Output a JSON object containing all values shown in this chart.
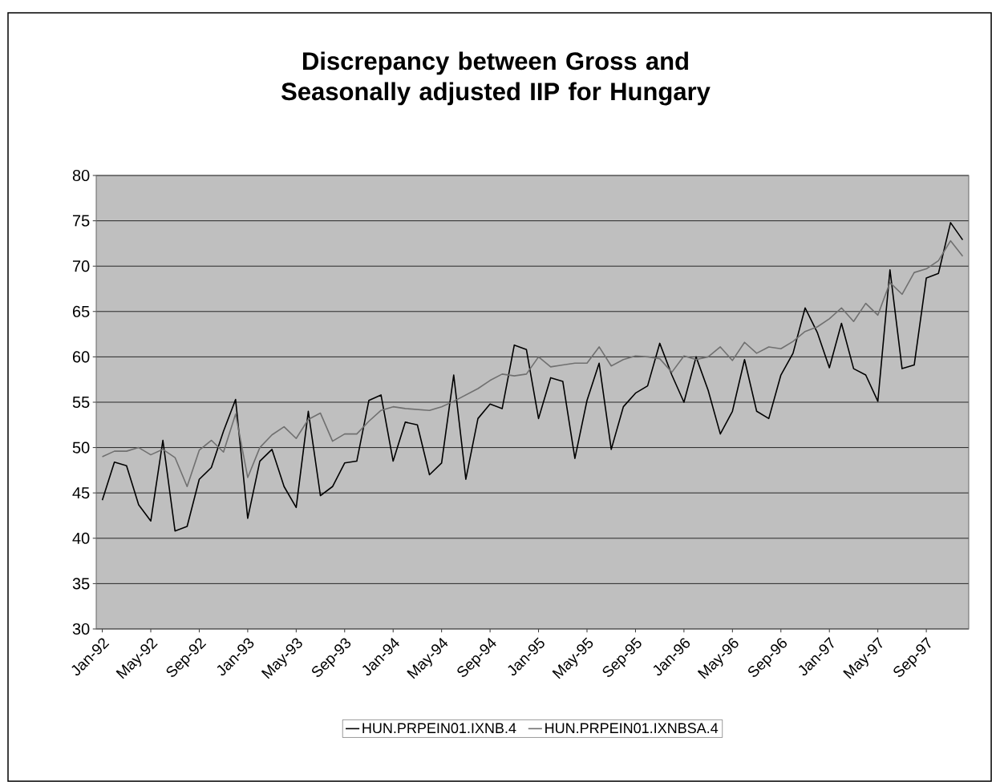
{
  "chart_data": {
    "type": "line",
    "title": "Discrepancy between Gross and Seasonally adjusted IIP for Hungary",
    "categories": [
      "Jan-92",
      null,
      null,
      null,
      "May-92",
      null,
      null,
      null,
      "Sep-92",
      null,
      null,
      null,
      "Jan-93",
      null,
      null,
      null,
      "May-93",
      null,
      null,
      null,
      "Sep-93",
      null,
      null,
      null,
      "Jan-94",
      null,
      null,
      null,
      "May-94",
      null,
      null,
      null,
      "Sep-94",
      null,
      null,
      null,
      "Jan-95",
      null,
      null,
      null,
      "May-95",
      null,
      null,
      null,
      "Sep-95",
      null,
      null,
      null,
      "Jan-96",
      null,
      null,
      null,
      "May-96",
      null,
      null,
      null,
      "Sep-96",
      null,
      null,
      null,
      "Jan-97",
      null,
      null,
      null,
      "May-97",
      null,
      null,
      null,
      "Sep-97",
      null,
      null,
      null
    ],
    "series": [
      {
        "name": "HUN.PRPEIN01.IXNB.4",
        "color": "#000000",
        "values": [
          44.2,
          48.4,
          48.0,
          43.7,
          41.9,
          50.8,
          40.8,
          41.3,
          46.5,
          47.8,
          51.8,
          55.3,
          42.2,
          48.5,
          49.8,
          45.7,
          43.4,
          54.0,
          44.7,
          45.7,
          48.3,
          48.5,
          55.2,
          55.8,
          48.5,
          52.8,
          52.5,
          47.0,
          48.3,
          58.0,
          46.5,
          53.2,
          54.8,
          54.3,
          61.3,
          60.8,
          53.2,
          57.7,
          57.3,
          48.8,
          55.2,
          59.3,
          49.8,
          54.5,
          56.0,
          56.8,
          61.5,
          58.0,
          55.0,
          60.0,
          56.3,
          51.5,
          54.0,
          59.7,
          54.0,
          53.2,
          58.0,
          60.4,
          65.4,
          62.7,
          58.8,
          63.7,
          58.7,
          58.0,
          55.1,
          69.6,
          58.7,
          59.1,
          68.7,
          69.2,
          74.8,
          72.9
        ]
      },
      {
        "name": "HUN.PRPEIN01.IXNBSA.4",
        "color": "#707070",
        "values": [
          49.0,
          49.6,
          49.6,
          50.0,
          49.2,
          49.8,
          48.9,
          45.7,
          49.7,
          50.8,
          49.5,
          53.7,
          46.7,
          50.0,
          51.4,
          52.3,
          51.0,
          53.1,
          53.8,
          50.7,
          51.5,
          51.5,
          52.9,
          54.1,
          54.5,
          54.3,
          54.2,
          54.1,
          54.5,
          55.1,
          55.8,
          56.5,
          57.4,
          58.1,
          57.9,
          58.1,
          60.0,
          58.9,
          59.1,
          59.3,
          59.3,
          61.1,
          59.0,
          59.7,
          60.1,
          60.0,
          59.8,
          58.3,
          60.1,
          59.7,
          60.0,
          61.1,
          59.6,
          61.6,
          60.4,
          61.1,
          60.9,
          61.7,
          62.8,
          63.3,
          64.2,
          65.4,
          63.9,
          65.9,
          64.6,
          68.2,
          66.9,
          69.3,
          69.7,
          70.6,
          72.8,
          71.1
        ]
      }
    ],
    "ylim": [
      30,
      80
    ],
    "yticks": [
      30,
      35,
      40,
      45,
      50,
      55,
      60,
      65,
      70,
      75,
      80
    ],
    "grid": "y",
    "legend": "bottom"
  }
}
